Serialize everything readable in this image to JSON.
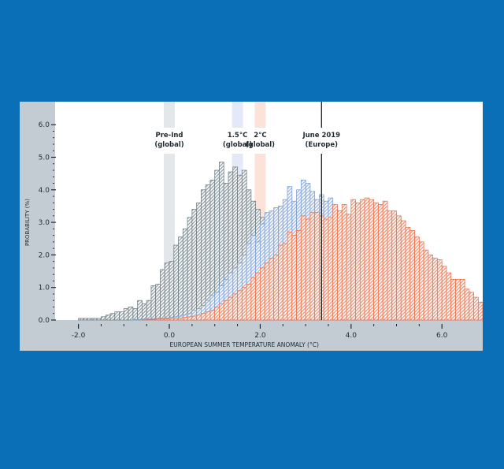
{
  "chart_data": {
    "type": "bar",
    "title": "",
    "xlabel": "EUROPEAN SUMMER TEMPERATURE ANOMALY (°C)",
    "ylabel": "PROBABILITY (%)",
    "xlim": [
      -2.5,
      6.5
    ],
    "ylim": [
      0,
      6.2
    ],
    "xticks": [
      -2.0,
      0.0,
      2.0,
      4.0,
      6.0
    ],
    "xtick_labels": [
      "-2.0",
      "0.0",
      "2.0",
      "4.0",
      "6.0"
    ],
    "yticks": [
      0.0,
      1.0,
      2.0,
      3.0,
      4.0,
      5.0,
      6.0
    ],
    "ytick_labels": [
      "0.0",
      "1.0",
      "2.0",
      "3.0",
      "4.0",
      "5.0",
      "6.0"
    ],
    "grid": false,
    "bin_width": 0.1,
    "series": [
      {
        "name": "Pre-Ind (global)",
        "color": "#6f8088",
        "start": -2.5,
        "values": [
          0.0,
          0.0,
          0.0,
          0.0,
          0.0,
          0.05,
          0.05,
          0.05,
          0.05,
          0.05,
          0.1,
          0.15,
          0.2,
          0.25,
          0.25,
          0.35,
          0.4,
          0.35,
          0.6,
          0.5,
          0.6,
          1.05,
          1.1,
          1.55,
          1.75,
          1.8,
          2.3,
          2.55,
          2.8,
          3.15,
          3.4,
          3.6,
          4.0,
          4.15,
          4.3,
          4.6,
          4.85,
          4.2,
          4.55,
          4.7,
          4.45,
          4.6,
          4.0,
          3.65,
          3.4,
          3.15,
          2.9,
          2.7,
          2.5,
          2.2,
          2.05,
          1.85,
          1.65,
          1.5,
          1.25,
          1.05,
          0.95,
          0.8,
          0.7,
          0.55,
          0.45,
          0.35,
          0.3,
          0.25,
          0.2,
          0.15,
          0.1,
          0.08,
          0.06,
          0.05,
          0.04,
          0.03,
          0.02,
          0.02,
          0.01,
          0.0
        ]
      },
      {
        "name": "1.5°C (global)",
        "color": "#7d9fd8",
        "start": -0.8,
        "values": [
          0.02,
          0.02,
          0.03,
          0.03,
          0.04,
          0.05,
          0.05,
          0.06,
          0.08,
          0.1,
          0.12,
          0.15,
          0.2,
          0.3,
          0.35,
          0.45,
          0.6,
          0.75,
          0.85,
          1.05,
          1.25,
          1.45,
          1.6,
          1.75,
          2.0,
          2.35,
          2.6,
          2.4,
          2.95,
          3.3,
          3.35,
          3.45,
          3.5,
          3.7,
          4.1,
          3.65,
          4.0,
          4.3,
          4.2,
          3.95,
          3.7,
          3.85,
          3.65,
          3.75,
          3.5,
          3.35,
          3.3,
          3.1,
          2.9,
          2.75,
          2.6,
          2.45,
          2.2,
          2.0,
          1.85,
          1.6,
          1.4,
          1.3,
          1.1,
          0.95,
          0.8,
          0.65,
          0.55,
          0.45,
          0.4,
          0.35,
          0.3,
          0.25,
          0.2,
          0.15,
          0.12,
          0.1,
          0.08,
          0.06,
          0.05,
          0.04,
          0.03,
          0.02
        ]
      },
      {
        "name": "2°C (global)",
        "color": "#f0714a",
        "start": -0.6,
        "values": [
          0.01,
          0.02,
          0.02,
          0.03,
          0.03,
          0.04,
          0.05,
          0.05,
          0.06,
          0.08,
          0.1,
          0.12,
          0.15,
          0.2,
          0.25,
          0.3,
          0.4,
          0.5,
          0.6,
          0.7,
          0.8,
          0.9,
          1.0,
          1.1,
          1.3,
          1.45,
          1.6,
          1.75,
          1.9,
          2.0,
          2.3,
          2.35,
          2.7,
          2.6,
          2.75,
          3.2,
          3.1,
          3.3,
          3.3,
          3.2,
          3.1,
          3.15,
          3.55,
          3.35,
          3.55,
          3.25,
          3.7,
          3.6,
          3.7,
          3.75,
          3.7,
          3.6,
          3.55,
          3.65,
          3.35,
          3.35,
          3.2,
          3.05,
          2.85,
          2.75,
          2.55,
          2.4,
          2.15,
          2.0,
          1.9,
          1.85,
          1.65,
          1.45,
          1.25,
          1.25,
          1.25,
          0.95,
          0.85,
          0.7,
          0.55,
          0.55,
          0.45,
          0.4,
          0.35,
          0.35,
          0.3,
          0.25,
          0.2,
          0.15,
          0.12,
          0.1,
          0.08,
          0.06,
          0.05,
          0.04,
          0.03,
          0.02,
          0.01
        ]
      }
    ],
    "reference_lines": [
      {
        "label": "June 2019",
        "sublabel": "(Europe)",
        "x": 3.35,
        "color": "#1a1a1a",
        "style": "solid-line"
      },
      {
        "label": "Pre-Ind",
        "sublabel": "(global)",
        "x": 0.0,
        "color": "#e3e7ea",
        "style": "band"
      },
      {
        "label": "1.5°C",
        "sublabel": "(global)",
        "x": 1.5,
        "color": "#e4e9f7",
        "style": "band"
      },
      {
        "label": "2°C",
        "sublabel": "(global)",
        "x": 2.0,
        "color": "#fbe3da",
        "style": "band"
      }
    ]
  },
  "colors": {
    "background": "#0a6fb7",
    "panel": "#c3ccd3",
    "plot": "#ffffff",
    "axis_text": "#1f2a30"
  }
}
